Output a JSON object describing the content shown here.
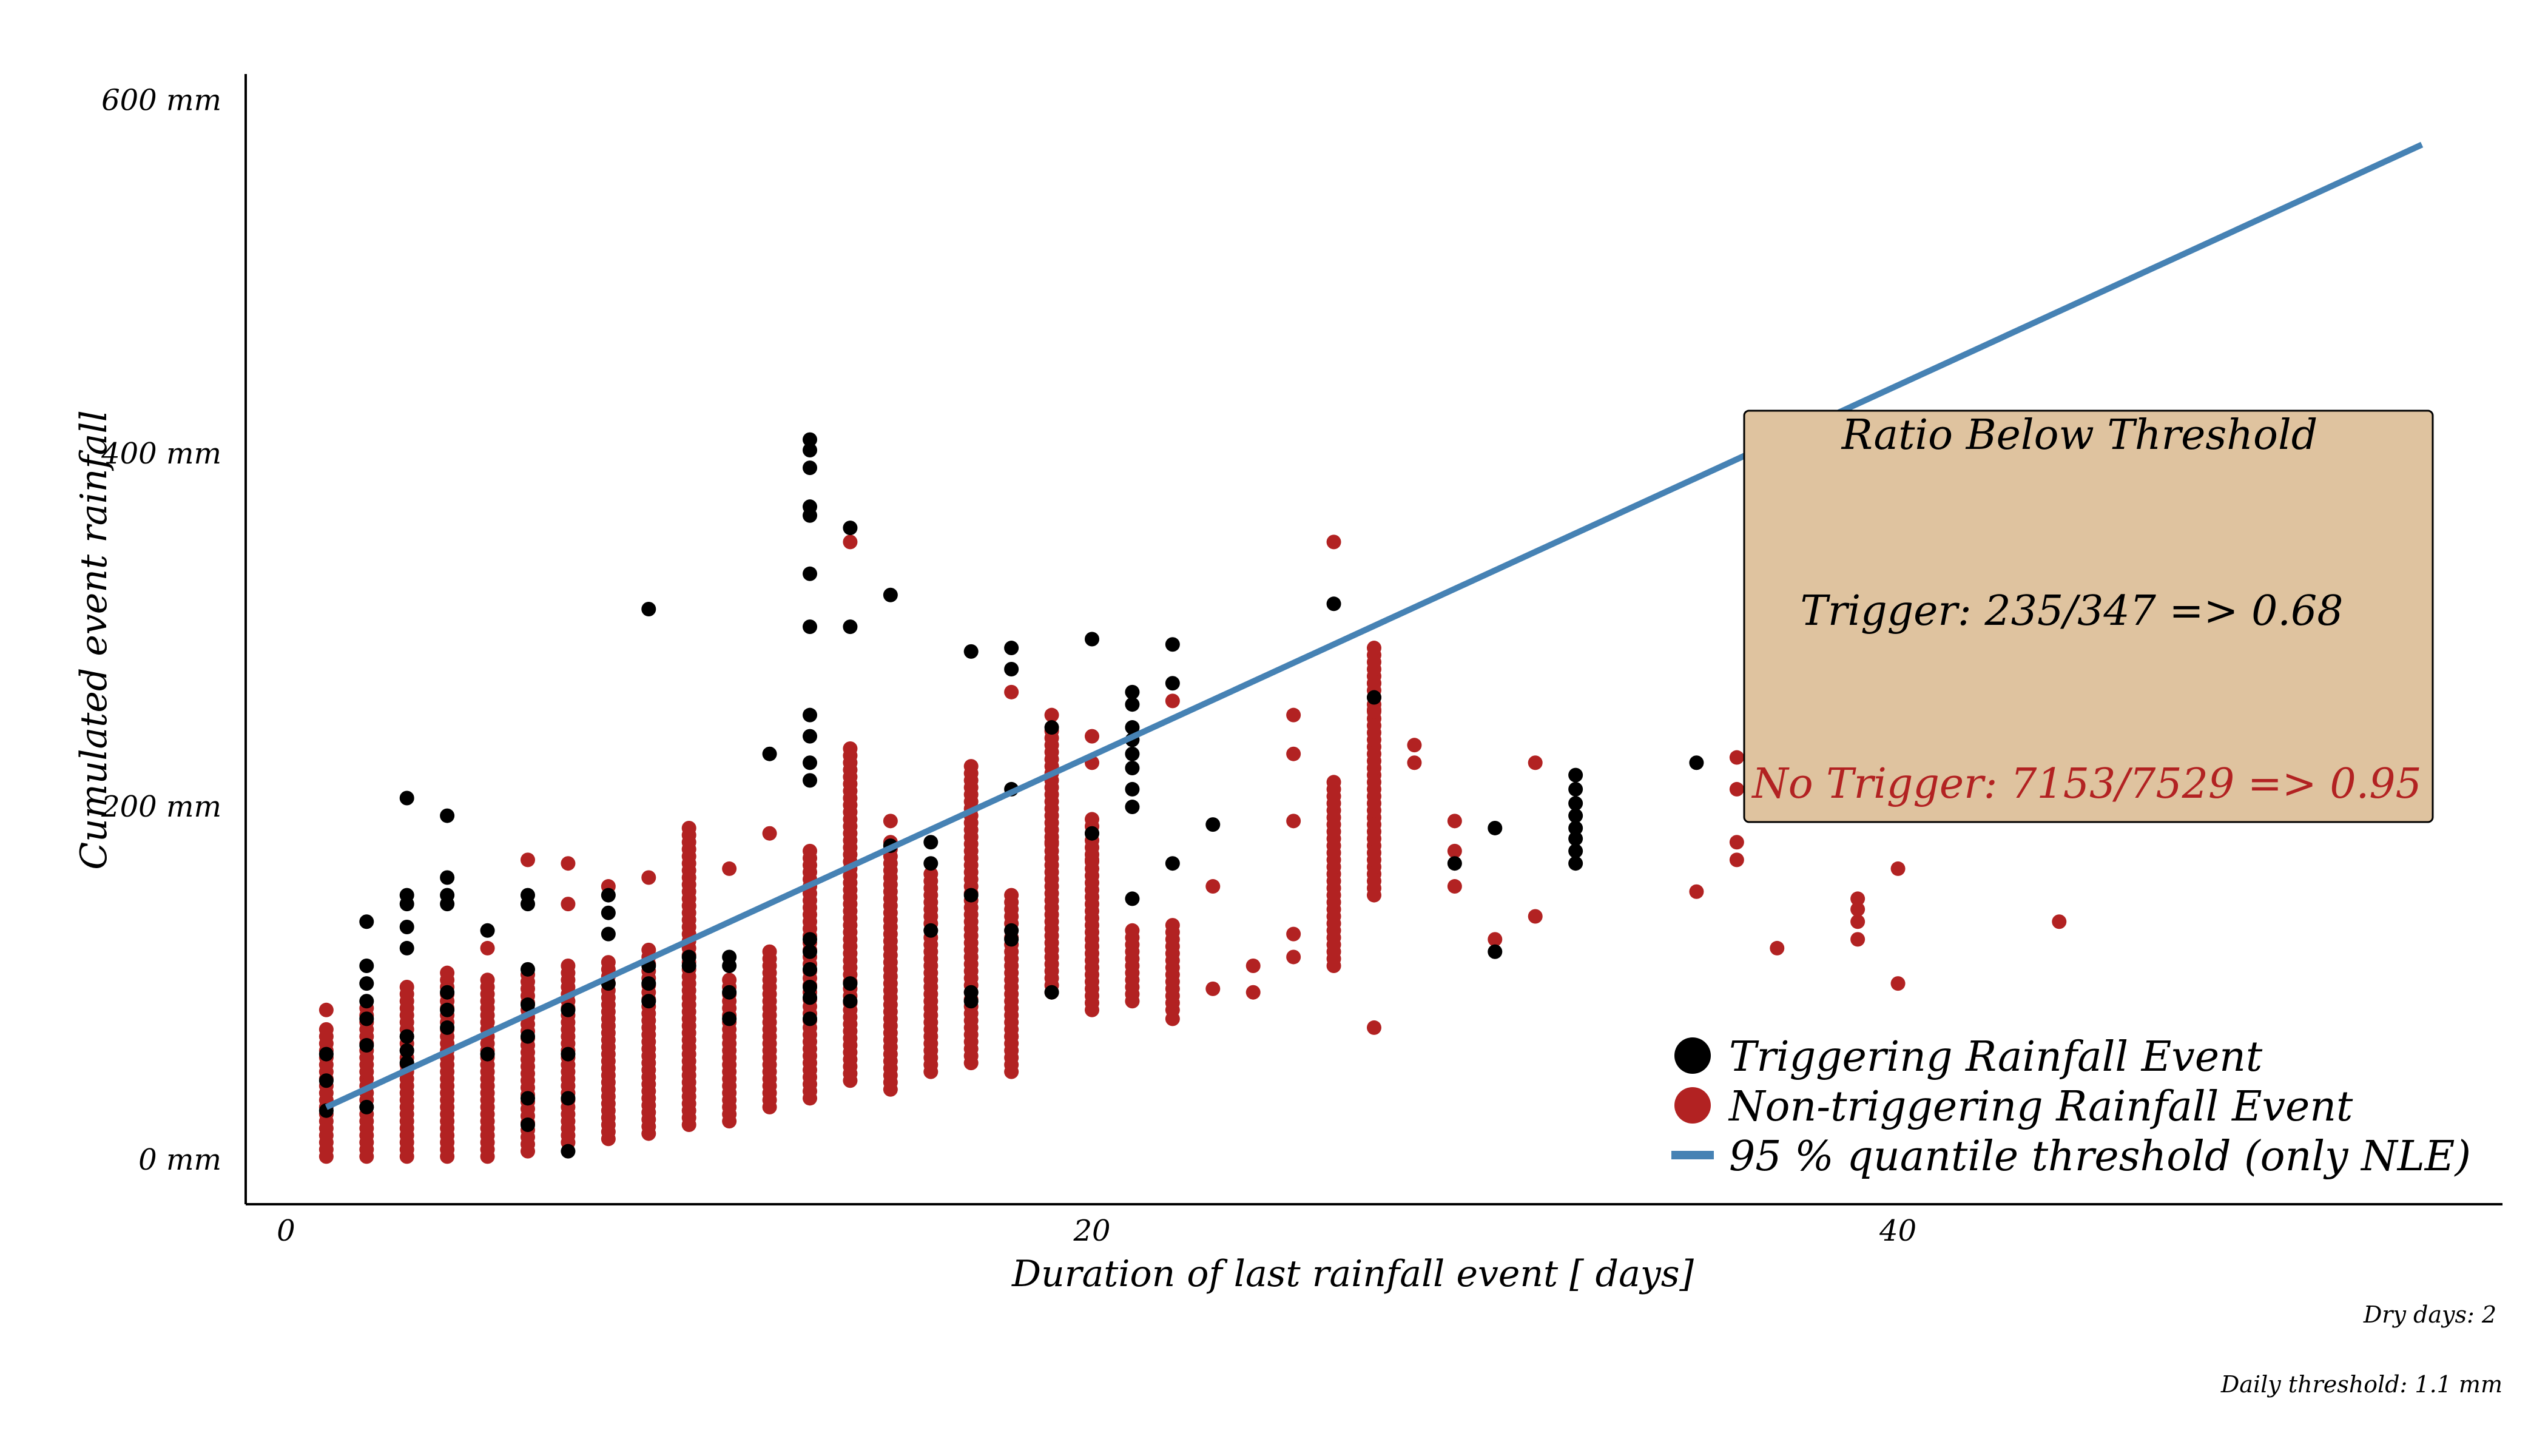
{
  "chart_data": {
    "type": "scatter",
    "title": "",
    "xlabel": "Duration of last rainfall event [ days]",
    "ylabel": "Cumulated event rainfall",
    "xlim": [
      -1,
      55
    ],
    "ylim": [
      -25,
      615
    ],
    "x_ticks": [
      {
        "value": 0,
        "label": "0"
      },
      {
        "value": 20,
        "label": "20"
      },
      {
        "value": 40,
        "label": "40"
      }
    ],
    "y_ticks": [
      {
        "value": 0,
        "label": "0 mm"
      },
      {
        "value": 200,
        "label": "200 mm"
      },
      {
        "value": 400,
        "label": "400 mm"
      },
      {
        "value": 600,
        "label": "600 mm"
      }
    ],
    "grid": false,
    "legend_position": "bottom-right",
    "colors": {
      "trigger": "#000000",
      "no_trigger": "#b22222",
      "threshold": "#4682b4",
      "annotation_bg": "#dfc39f"
    },
    "legend": {
      "trigger_label": "Triggering Rainfall Event",
      "no_trigger_label": "Non-triggering Rainfall Event",
      "threshold_label": "95 % quantile threshold (only NLE)"
    },
    "threshold_line": {
      "name": "95 % quantile threshold (only NLE)",
      "x": [
        1,
        53
      ],
      "y": [
        30,
        575
      ]
    },
    "annotation": {
      "title": "Ratio Below Threshold",
      "trigger": "Trigger: 235/347 => 0.68",
      "no_trigger": "No Trigger: 7153/7529 => 0.95"
    },
    "footnotes": {
      "dry_days": "Dry days: 2",
      "daily_threshold": "Daily threshold: 1.1 mm"
    },
    "series": [
      {
        "name": "Non-triggering Rainfall Event",
        "color": "#b22222",
        "ranges": [
          {
            "x": 1,
            "lo": 2,
            "hi": 75
          },
          {
            "x": 2,
            "lo": 2,
            "hi": 88
          },
          {
            "x": 3,
            "lo": 2,
            "hi": 100
          },
          {
            "x": 4,
            "lo": 2,
            "hi": 108
          },
          {
            "x": 5,
            "lo": 2,
            "hi": 105
          },
          {
            "x": 6,
            "lo": 5,
            "hi": 108
          },
          {
            "x": 7,
            "lo": 10,
            "hi": 112
          },
          {
            "x": 8,
            "lo": 12,
            "hi": 115
          },
          {
            "x": 9,
            "lo": 15,
            "hi": 120
          },
          {
            "x": 10,
            "lo": 20,
            "hi": 190
          },
          {
            "x": 11,
            "lo": 22,
            "hi": 105
          },
          {
            "x": 12,
            "lo": 30,
            "hi": 120
          },
          {
            "x": 13,
            "lo": 35,
            "hi": 175
          },
          {
            "x": 14,
            "lo": 45,
            "hi": 235
          },
          {
            "x": 15,
            "lo": 40,
            "hi": 180
          },
          {
            "x": 16,
            "lo": 50,
            "hi": 165
          },
          {
            "x": 17,
            "lo": 55,
            "hi": 225
          },
          {
            "x": 18,
            "lo": 50,
            "hi": 150
          },
          {
            "x": 19,
            "lo": 95,
            "hi": 245
          },
          {
            "x": 20,
            "lo": 85,
            "hi": 195
          },
          {
            "x": 21,
            "lo": 90,
            "hi": 130
          },
          {
            "x": 22,
            "lo": 85,
            "hi": 135
          },
          {
            "x": 26,
            "lo": 110,
            "hi": 215
          },
          {
            "x": 27,
            "lo": 150,
            "hi": 290
          }
        ],
        "points": [
          {
            "x": 1,
            "y": 85
          },
          {
            "x": 5,
            "y": 120
          },
          {
            "x": 6,
            "y": 170
          },
          {
            "x": 7,
            "y": 168
          },
          {
            "x": 7,
            "y": 145
          },
          {
            "x": 8,
            "y": 155
          },
          {
            "x": 9,
            "y": 160
          },
          {
            "x": 11,
            "y": 165
          },
          {
            "x": 12,
            "y": 185
          },
          {
            "x": 14,
            "y": 350
          },
          {
            "x": 15,
            "y": 192
          },
          {
            "x": 18,
            "y": 265
          },
          {
            "x": 18,
            "y": 70
          },
          {
            "x": 19,
            "y": 252
          },
          {
            "x": 19,
            "y": 180
          },
          {
            "x": 20,
            "y": 240
          },
          {
            "x": 20,
            "y": 225
          },
          {
            "x": 20,
            "y": 170
          },
          {
            "x": 22,
            "y": 260
          },
          {
            "x": 22,
            "y": 80
          },
          {
            "x": 23,
            "y": 155
          },
          {
            "x": 23,
            "y": 97
          },
          {
            "x": 24,
            "y": 110
          },
          {
            "x": 24,
            "y": 95
          },
          {
            "x": 25,
            "y": 252
          },
          {
            "x": 25,
            "y": 230
          },
          {
            "x": 25,
            "y": 192
          },
          {
            "x": 25,
            "y": 128
          },
          {
            "x": 25,
            "y": 115
          },
          {
            "x": 26,
            "y": 350
          },
          {
            "x": 27,
            "y": 270
          },
          {
            "x": 27,
            "y": 255
          },
          {
            "x": 27,
            "y": 75
          },
          {
            "x": 28,
            "y": 235
          },
          {
            "x": 28,
            "y": 225
          },
          {
            "x": 29,
            "y": 192
          },
          {
            "x": 29,
            "y": 175
          },
          {
            "x": 29,
            "y": 155
          },
          {
            "x": 30,
            "y": 125
          },
          {
            "x": 31,
            "y": 138
          },
          {
            "x": 31,
            "y": 225
          },
          {
            "x": 35,
            "y": 152
          },
          {
            "x": 36,
            "y": 228
          },
          {
            "x": 36,
            "y": 210
          },
          {
            "x": 36,
            "y": 180
          },
          {
            "x": 36,
            "y": 170
          },
          {
            "x": 37,
            "y": 120
          },
          {
            "x": 39,
            "y": 148
          },
          {
            "x": 39,
            "y": 142
          },
          {
            "x": 39,
            "y": 135
          },
          {
            "x": 39,
            "y": 125
          },
          {
            "x": 40,
            "y": 100
          },
          {
            "x": 40,
            "y": 165
          },
          {
            "x": 44,
            "y": 135
          }
        ]
      },
      {
        "name": "Triggering Rainfall Event",
        "color": "#000000",
        "points": [
          {
            "x": 1,
            "y": 28
          },
          {
            "x": 1,
            "y": 45
          },
          {
            "x": 1,
            "y": 60
          },
          {
            "x": 2,
            "y": 30
          },
          {
            "x": 2,
            "y": 65
          },
          {
            "x": 2,
            "y": 80
          },
          {
            "x": 2,
            "y": 90
          },
          {
            "x": 2,
            "y": 100
          },
          {
            "x": 2,
            "y": 110
          },
          {
            "x": 2,
            "y": 135
          },
          {
            "x": 3,
            "y": 55
          },
          {
            "x": 3,
            "y": 62
          },
          {
            "x": 3,
            "y": 70
          },
          {
            "x": 3,
            "y": 120
          },
          {
            "x": 3,
            "y": 132
          },
          {
            "x": 3,
            "y": 145
          },
          {
            "x": 3,
            "y": 150
          },
          {
            "x": 3,
            "y": 205
          },
          {
            "x": 4,
            "y": 75
          },
          {
            "x": 4,
            "y": 85
          },
          {
            "x": 4,
            "y": 95
          },
          {
            "x": 4,
            "y": 145
          },
          {
            "x": 4,
            "y": 150
          },
          {
            "x": 4,
            "y": 160
          },
          {
            "x": 4,
            "y": 195
          },
          {
            "x": 5,
            "y": 60
          },
          {
            "x": 5,
            "y": 130
          },
          {
            "x": 6,
            "y": 20
          },
          {
            "x": 6,
            "y": 35
          },
          {
            "x": 6,
            "y": 70
          },
          {
            "x": 6,
            "y": 88
          },
          {
            "x": 6,
            "y": 108
          },
          {
            "x": 6,
            "y": 145
          },
          {
            "x": 6,
            "y": 150
          },
          {
            "x": 7,
            "y": 5
          },
          {
            "x": 7,
            "y": 35
          },
          {
            "x": 7,
            "y": 60
          },
          {
            "x": 7,
            "y": 85
          },
          {
            "x": 8,
            "y": 100
          },
          {
            "x": 8,
            "y": 128
          },
          {
            "x": 8,
            "y": 140
          },
          {
            "x": 8,
            "y": 150
          },
          {
            "x": 9,
            "y": 90
          },
          {
            "x": 9,
            "y": 100
          },
          {
            "x": 9,
            "y": 110
          },
          {
            "x": 9,
            "y": 312
          },
          {
            "x": 10,
            "y": 110
          },
          {
            "x": 10,
            "y": 115
          },
          {
            "x": 11,
            "y": 80
          },
          {
            "x": 11,
            "y": 95
          },
          {
            "x": 11,
            "y": 110
          },
          {
            "x": 11,
            "y": 115
          },
          {
            "x": 12,
            "y": 230
          },
          {
            "x": 13,
            "y": 80
          },
          {
            "x": 13,
            "y": 92
          },
          {
            "x": 13,
            "y": 98
          },
          {
            "x": 13,
            "y": 108
          },
          {
            "x": 13,
            "y": 118
          },
          {
            "x": 13,
            "y": 125
          },
          {
            "x": 13,
            "y": 215
          },
          {
            "x": 13,
            "y": 225
          },
          {
            "x": 13,
            "y": 240
          },
          {
            "x": 13,
            "y": 252
          },
          {
            "x": 13,
            "y": 302
          },
          {
            "x": 13,
            "y": 332
          },
          {
            "x": 13,
            "y": 365
          },
          {
            "x": 13,
            "y": 370
          },
          {
            "x": 13,
            "y": 392
          },
          {
            "x": 13,
            "y": 402
          },
          {
            "x": 13,
            "y": 408
          },
          {
            "x": 14,
            "y": 90
          },
          {
            "x": 14,
            "y": 100
          },
          {
            "x": 14,
            "y": 302
          },
          {
            "x": 14,
            "y": 358
          },
          {
            "x": 15,
            "y": 178
          },
          {
            "x": 15,
            "y": 320
          },
          {
            "x": 16,
            "y": 130
          },
          {
            "x": 16,
            "y": 168
          },
          {
            "x": 16,
            "y": 180
          },
          {
            "x": 17,
            "y": 90
          },
          {
            "x": 17,
            "y": 95
          },
          {
            "x": 17,
            "y": 150
          },
          {
            "x": 17,
            "y": 288
          },
          {
            "x": 18,
            "y": 125
          },
          {
            "x": 18,
            "y": 130
          },
          {
            "x": 18,
            "y": 210
          },
          {
            "x": 18,
            "y": 278
          },
          {
            "x": 18,
            "y": 290
          },
          {
            "x": 19,
            "y": 95
          },
          {
            "x": 19,
            "y": 245
          },
          {
            "x": 20,
            "y": 185
          },
          {
            "x": 20,
            "y": 295
          },
          {
            "x": 21,
            "y": 148
          },
          {
            "x": 21,
            "y": 200
          },
          {
            "x": 21,
            "y": 210
          },
          {
            "x": 21,
            "y": 222
          },
          {
            "x": 21,
            "y": 230
          },
          {
            "x": 21,
            "y": 238
          },
          {
            "x": 21,
            "y": 245
          },
          {
            "x": 21,
            "y": 258
          },
          {
            "x": 21,
            "y": 265
          },
          {
            "x": 22,
            "y": 168
          },
          {
            "x": 22,
            "y": 270
          },
          {
            "x": 22,
            "y": 292
          },
          {
            "x": 23,
            "y": 190
          },
          {
            "x": 26,
            "y": 315
          },
          {
            "x": 27,
            "y": 262
          },
          {
            "x": 29,
            "y": 168
          },
          {
            "x": 30,
            "y": 118
          },
          {
            "x": 30,
            "y": 188
          },
          {
            "x": 32,
            "y": 168
          },
          {
            "x": 32,
            "y": 175
          },
          {
            "x": 32,
            "y": 182
          },
          {
            "x": 32,
            "y": 188
          },
          {
            "x": 32,
            "y": 195
          },
          {
            "x": 32,
            "y": 202
          },
          {
            "x": 32,
            "y": 210
          },
          {
            "x": 32,
            "y": 218
          },
          {
            "x": 35,
            "y": 225
          }
        ]
      }
    ]
  }
}
